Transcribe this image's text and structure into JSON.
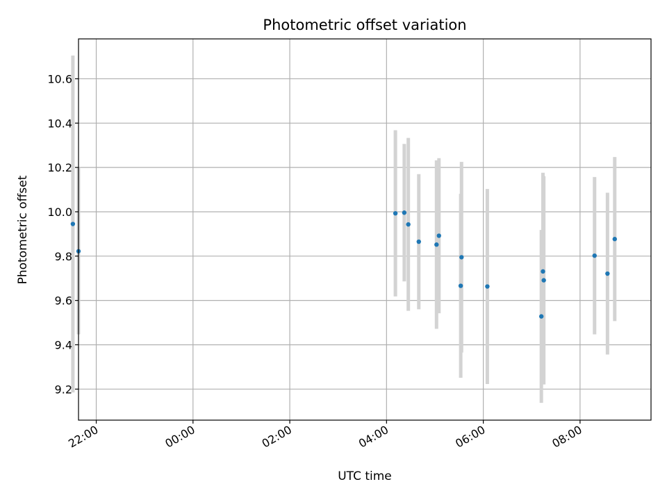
{
  "chart_data": {
    "type": "scatter",
    "title": "Photometric offset variation",
    "xlabel": "UTC time",
    "ylabel": "Photometric offset",
    "x_tick_labels": [
      "22:00",
      "00:00",
      "02:00",
      "04:00",
      "06:00",
      "08:00"
    ],
    "y_tick_labels": [
      "9.2",
      "9.4",
      "9.6",
      "9.8",
      "10.0",
      "10.2",
      "10.4",
      "10.6"
    ],
    "y_ticks": [
      9.2,
      9.4,
      9.6,
      9.8,
      10.0,
      10.2,
      10.4,
      10.6
    ],
    "xlim": [
      "21:38",
      "09:28"
    ],
    "ylim": [
      9.06,
      10.78
    ],
    "grid": true,
    "colors": {
      "point": "#1f77b4",
      "errorbar": "#d3d3d3",
      "grid": "#b0b0b0"
    },
    "points": [
      {
        "x": "21:31",
        "y": 9.945,
        "err": 0.76
      },
      {
        "x": "21:38",
        "y": 9.822,
        "err": 0.375
      },
      {
        "x": "04:11",
        "y": 9.993,
        "err": 0.375
      },
      {
        "x": "04:22",
        "y": 9.996,
        "err": 0.31
      },
      {
        "x": "04:27",
        "y": 9.943,
        "err": 0.39
      },
      {
        "x": "04:40",
        "y": 9.865,
        "err": 0.305
      },
      {
        "x": "05:02",
        "y": 9.852,
        "err": 0.38
      },
      {
        "x": "05:05",
        "y": 9.892,
        "err": 0.35
      },
      {
        "x": "05:33",
        "y": 9.795,
        "err": 0.43
      },
      {
        "x": "05:32",
        "y": 9.666,
        "err": 0.415
      },
      {
        "x": "06:05",
        "y": 9.663,
        "err": 0.44
      },
      {
        "x": "07:12",
        "y": 9.528,
        "err": 0.39
      },
      {
        "x": "07:14",
        "y": 9.731,
        "err": 0.445
      },
      {
        "x": "07:15",
        "y": 9.691,
        "err": 0.47
      },
      {
        "x": "08:18",
        "y": 9.802,
        "err": 0.355
      },
      {
        "x": "08:34",
        "y": 9.721,
        "err": 0.365
      },
      {
        "x": "08:43",
        "y": 9.877,
        "err": 0.37
      }
    ]
  }
}
